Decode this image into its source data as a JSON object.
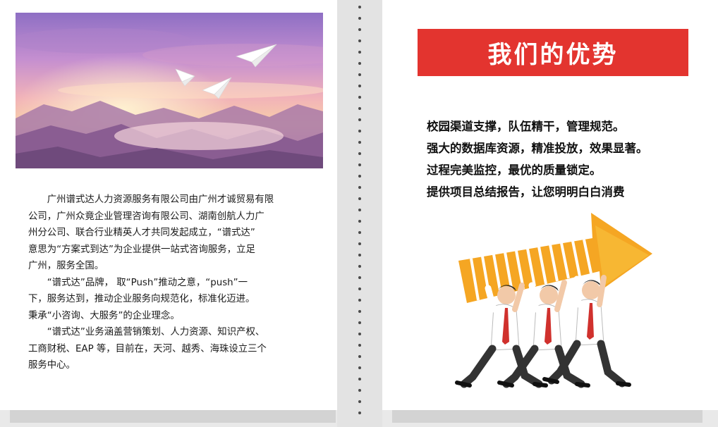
{
  "intro": {
    "p1_line1": "广州谱式达人力资源服务有限公司由广州才诚贸易有限",
    "p1_line2": "公司，广州众竟企业管理咨询有限公司、湖南创航人力广",
    "p1_line3": "州分公司、联合行业精英人才共同发起成立，“谱式达”",
    "p1_line4": "意思为“方案式到达”为企业提供一站式咨询服务，立足",
    "p1_line5": "广州，服务全国。",
    "p2_line1": "“谱式达”品牌， 取“Push”推动之意，“push”一",
    "p2_line2": "下，服务达到，推动企业服务向规范化，标准化迈进。",
    "p3_line1": "秉承“小咨询、大服务”的企业理念。",
    "p4_line1": "“谱式达”业务涵盖营销策划、人力资源、知识产权、",
    "p4_line2": "工商财税、EAP 等，目前在，天河、越秀、海珠设立三个",
    "p4_line3": "服务中心。"
  },
  "advantages": {
    "title": "我们的优势",
    "items": [
      "校园渠道支撑，队伍精干，管理规范。",
      "强大的数据库资源，精准投放，效果显著。",
      "过程完美监控，最优的质量锁定。",
      "提供项目总结报告，让您明明白白消费"
    ]
  },
  "colors": {
    "banner": "#e3342f",
    "arrow": "#f5a623",
    "background": "#e9e9e9"
  }
}
